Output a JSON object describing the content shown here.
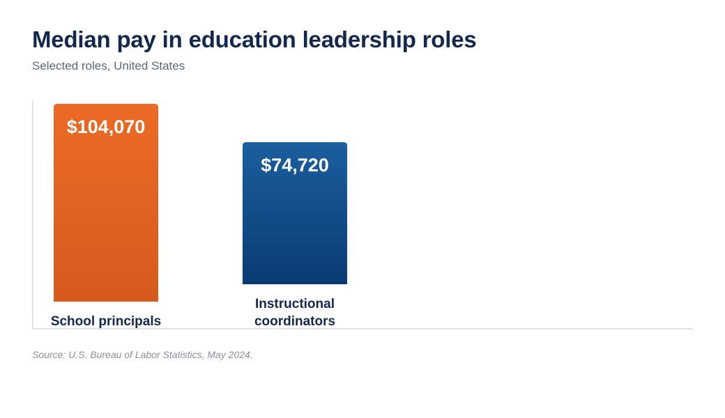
{
  "title": "Median pay in education leadership roles",
  "subtitle": "Selected roles, United States",
  "source": "Source: U.S. Bureau of Labor Statistics, May 2024.",
  "colors": {
    "school_principals": "#e15e20",
    "instructional_coordinators": "#0f4580",
    "axis": "#dfe3ea",
    "label": "#12294d"
  },
  "chart_data": {
    "type": "bar",
    "title": "Median pay in education leadership roles",
    "subtitle": "Selected roles, United States",
    "xlabel": "",
    "ylabel": "",
    "categories": [
      "School principals",
      "Instructional coordinators"
    ],
    "values": [
      104070,
      74720
    ],
    "value_labels": [
      "$104,070",
      "$74,720"
    ],
    "ylim": [
      0,
      104070
    ],
    "grid": false,
    "legend": "none"
  }
}
